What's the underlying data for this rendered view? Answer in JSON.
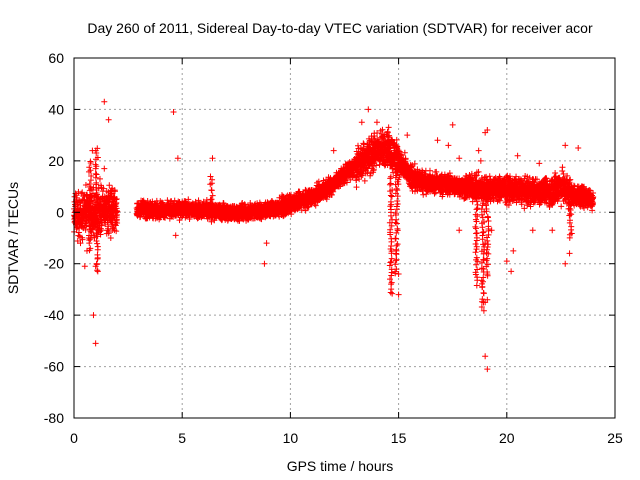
{
  "chart_data": {
    "type": "scatter",
    "title": "Day 260 of 2011, Sidereal Day-to-day VTEC variation (SDTVAR) for receiver acor",
    "xlabel": "GPS time / hours",
    "ylabel": "SDTVAR / TECUs",
    "xlim": [
      0,
      25
    ],
    "ylim": [
      -80,
      60
    ],
    "xticks": [
      0,
      5,
      10,
      15,
      20,
      25
    ],
    "yticks": [
      -80,
      -60,
      -40,
      -20,
      0,
      20,
      40,
      60
    ],
    "grid": true,
    "marker": "+",
    "color": "#ff0000",
    "trend": [
      [
        0.0,
        -1
      ],
      [
        0.5,
        0
      ],
      [
        1.0,
        0
      ],
      [
        1.5,
        1
      ],
      [
        2.0,
        1
      ],
      [
        3.0,
        1
      ],
      [
        4.0,
        1
      ],
      [
        5.0,
        1
      ],
      [
        6.0,
        1
      ],
      [
        7.0,
        0
      ],
      [
        8.0,
        0
      ],
      [
        9.0,
        1
      ],
      [
        10.0,
        3
      ],
      [
        11.0,
        6
      ],
      [
        12.0,
        11
      ],
      [
        12.5,
        15
      ],
      [
        13.0,
        18
      ],
      [
        13.5,
        21
      ],
      [
        14.0,
        24
      ],
      [
        14.5,
        25
      ],
      [
        15.0,
        20
      ],
      [
        15.5,
        14
      ],
      [
        16.0,
        12
      ],
      [
        17.0,
        11
      ],
      [
        18.0,
        10
      ],
      [
        19.0,
        9
      ],
      [
        20.0,
        9
      ],
      [
        21.0,
        8
      ],
      [
        22.0,
        8
      ],
      [
        22.5,
        10
      ],
      [
        23.0,
        7
      ],
      [
        24.0,
        5
      ]
    ],
    "outliers": [
      [
        0.7,
        -3
      ],
      [
        0.8,
        -9
      ],
      [
        0.85,
        24
      ],
      [
        0.9,
        -40
      ],
      [
        1.0,
        -51
      ],
      [
        1.0,
        -21
      ],
      [
        1.1,
        -23
      ],
      [
        1.2,
        13
      ],
      [
        1.4,
        17
      ],
      [
        1.4,
        43
      ],
      [
        1.6,
        36
      ],
      [
        1.7,
        -10
      ],
      [
        0.5,
        -21
      ],
      [
        0.3,
        -12
      ],
      [
        0.6,
        -15
      ],
      [
        4.6,
        39
      ],
      [
        4.8,
        21
      ],
      [
        4.7,
        -9
      ],
      [
        6.4,
        21
      ],
      [
        8.8,
        -20
      ],
      [
        8.9,
        -12
      ],
      [
        12.0,
        24
      ],
      [
        13.3,
        35
      ],
      [
        13.6,
        40
      ],
      [
        14.0,
        35
      ],
      [
        14.5,
        31
      ],
      [
        15.0,
        -32
      ],
      [
        15.0,
        -24
      ],
      [
        14.9,
        -15
      ],
      [
        15.4,
        30
      ],
      [
        16.2,
        15
      ],
      [
        17.5,
        34
      ],
      [
        17.3,
        26
      ],
      [
        16.8,
        28
      ],
      [
        17.8,
        21
      ],
      [
        17.8,
        -7
      ],
      [
        19.0,
        -56
      ],
      [
        19.1,
        -61
      ],
      [
        19.0,
        -35
      ],
      [
        19.1,
        -34
      ],
      [
        18.9,
        -27
      ],
      [
        19.0,
        31
      ],
      [
        19.1,
        32
      ],
      [
        18.7,
        24
      ],
      [
        18.8,
        20
      ],
      [
        19.0,
        -12
      ],
      [
        19.3,
        -7
      ],
      [
        20.0,
        -19
      ],
      [
        20.2,
        -23
      ],
      [
        20.3,
        -15
      ],
      [
        20.5,
        22
      ],
      [
        21.2,
        -7
      ],
      [
        22.1,
        -7
      ],
      [
        22.7,
        -20
      ],
      [
        22.9,
        -16
      ],
      [
        22.7,
        26
      ],
      [
        23.3,
        25
      ],
      [
        22.0,
        12
      ],
      [
        21.5,
        19
      ],
      [
        23.5,
        10
      ]
    ],
    "spikes": [
      {
        "x": 14.65,
        "from": 14,
        "to": -32
      },
      {
        "x": 14.9,
        "from": 18,
        "to": -24
      },
      {
        "x": 18.6,
        "from": 14,
        "to": -28
      },
      {
        "x": 18.9,
        "from": 13,
        "to": -38
      },
      {
        "x": 19.1,
        "from": 14,
        "to": -25
      },
      {
        "x": 22.95,
        "from": 10,
        "to": -10
      },
      {
        "x": 1.05,
        "from": 25,
        "to": -22
      },
      {
        "x": 0.75,
        "from": 20,
        "to": -15
      },
      {
        "x": 6.35,
        "from": 14,
        "to": -4
      }
    ]
  }
}
